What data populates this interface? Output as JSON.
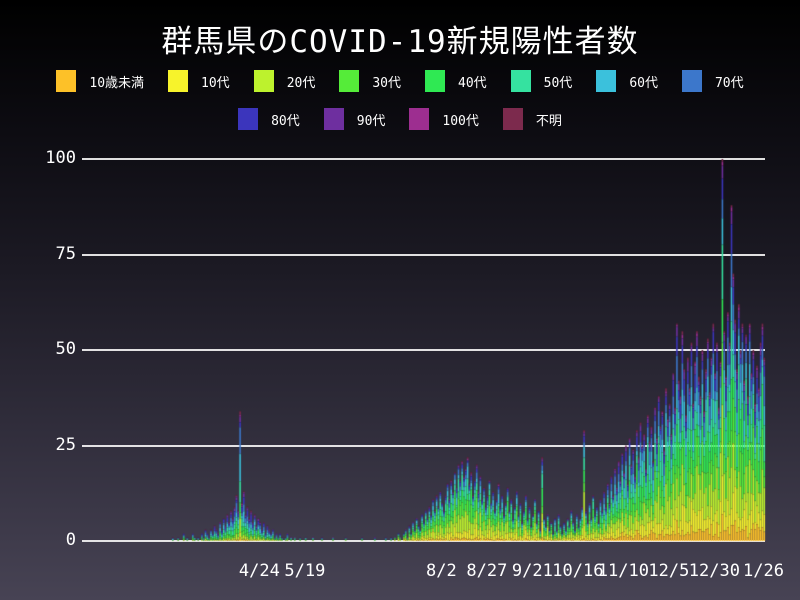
{
  "title": "群馬県のCOVID-19新規陽性者数",
  "colors": {
    "background_top": "#000000",
    "background_bottom": "#474354",
    "gridline": "#f2f2f2",
    "text": "#ffffff"
  },
  "legend": [
    {
      "label": "10歳未満",
      "color": "#fdc128"
    },
    {
      "label": "10代",
      "color": "#f7f32b"
    },
    {
      "label": "20代",
      "color": "#bdf22d"
    },
    {
      "label": "30代",
      "color": "#55ec39"
    },
    {
      "label": "40代",
      "color": "#2fe953"
    },
    {
      "label": "50代",
      "color": "#35e2a0"
    },
    {
      "label": "60代",
      "color": "#3bc1dc"
    },
    {
      "label": "70代",
      "color": "#3c77cb"
    },
    {
      "label": "80代",
      "color": "#3b35bc"
    },
    {
      "label": "90代",
      "color": "#6e2f9f"
    },
    {
      "label": "100代",
      "color": "#9d2e90"
    },
    {
      "label": "不明",
      "color": "#7c2a4d"
    }
  ],
  "chart_data": {
    "type": "bar",
    "stacked": true,
    "title": "群馬県のCOVID-19新規陽性者数",
    "xlabel": "",
    "ylabel": "",
    "ylim": [
      0,
      100
    ],
    "grid": "horizontal-white",
    "legend_position": "top",
    "x_start_date": "2020-03-07",
    "x_end_date": "2021-01-26",
    "x_tick_labels": [
      {
        "label": "4/24",
        "day": 48
      },
      {
        "label": "5/19",
        "day": 73
      },
      {
        "label": "8/2",
        "day": 148
      },
      {
        "label": "8/27",
        "day": 173
      },
      {
        "label": "9/21",
        "day": 198
      },
      {
        "label": "10/16",
        "day": 223
      },
      {
        "label": "11/10",
        "day": 248
      },
      {
        "label": "12/5",
        "day": 273
      },
      {
        "label": "12/30",
        "day": 298
      },
      {
        "label": "1/26",
        "day": 325
      }
    ],
    "y_ticks": [
      0,
      25,
      50,
      75,
      100
    ],
    "age_groups": [
      "10歳未満",
      "10代",
      "20代",
      "30代",
      "40代",
      "50代",
      "60代",
      "70代",
      "80代",
      "90代",
      "100代",
      "不明"
    ],
    "series_colors": [
      "#fdc128",
      "#f7f32b",
      "#bdf22d",
      "#55ec39",
      "#2fe953",
      "#35e2a0",
      "#3bc1dc",
      "#3c77cb",
      "#3b35bc",
      "#6e2f9f",
      "#9d2e90",
      "#7c2a4d"
    ],
    "era_distributions": [
      {
        "until_day": 120,
        "shares": [
          0.02,
          0.03,
          0.09,
          0.1,
          0.12,
          0.13,
          0.15,
          0.15,
          0.11,
          0.06,
          0.02,
          0.02
        ]
      },
      {
        "until_day": 235,
        "shares": [
          0.04,
          0.12,
          0.19,
          0.16,
          0.14,
          0.12,
          0.09,
          0.06,
          0.04,
          0.02,
          0.01,
          0.01
        ]
      },
      {
        "until_day": 325,
        "shares": [
          0.06,
          0.1,
          0.15,
          0.14,
          0.13,
          0.12,
          0.1,
          0.09,
          0.06,
          0.03,
          0.01,
          0.01
        ]
      }
    ],
    "daily_totals": [
      1,
      0,
      0,
      1,
      0,
      0,
      2,
      0,
      1,
      0,
      0,
      2,
      1,
      0,
      1,
      0,
      2,
      1,
      3,
      2,
      1,
      3,
      2,
      4,
      3,
      2,
      5,
      3,
      6,
      4,
      7,
      5,
      8,
      6,
      9,
      12,
      8,
      34,
      10,
      13,
      7,
      9,
      6,
      8,
      5,
      7,
      4,
      6,
      5,
      3,
      5,
      2,
      4,
      3,
      2,
      3,
      1,
      2,
      1,
      2,
      1,
      0,
      1,
      2,
      0,
      1,
      0,
      1,
      0,
      0,
      1,
      0,
      0,
      1,
      0,
      0,
      0,
      1,
      0,
      0,
      0,
      0,
      1,
      0,
      0,
      0,
      0,
      0,
      1,
      0,
      0,
      0,
      0,
      0,
      0,
      1,
      0,
      0,
      0,
      0,
      0,
      0,
      0,
      0,
      1,
      0,
      0,
      0,
      0,
      0,
      0,
      1,
      0,
      0,
      0,
      0,
      0,
      1,
      0,
      0,
      1,
      0,
      1,
      0,
      2,
      1,
      0,
      2,
      3,
      1,
      4,
      2,
      5,
      3,
      6,
      4,
      3,
      7,
      5,
      8,
      6,
      9,
      7,
      11,
      8,
      12,
      9,
      13,
      10,
      8,
      12,
      15,
      11,
      16,
      13,
      18,
      14,
      20,
      16,
      21,
      17,
      19,
      22,
      15,
      18,
      12,
      16,
      20,
      13,
      17,
      11,
      14,
      9,
      12,
      16,
      10,
      13,
      8,
      11,
      15,
      9,
      12,
      7,
      10,
      14,
      8,
      11,
      6,
      9,
      13,
      7,
      10,
      5,
      8,
      12,
      6,
      9,
      4,
      7,
      11,
      5,
      8,
      3,
      22,
      6,
      4,
      7,
      3,
      5,
      2,
      6,
      3,
      7,
      4,
      2,
      5,
      3,
      6,
      4,
      8,
      5,
      3,
      7,
      4,
      6,
      9,
      29,
      8,
      5,
      10,
      6,
      12,
      7,
      9,
      5,
      11,
      8,
      13,
      9,
      15,
      10,
      17,
      12,
      19,
      14,
      21,
      16,
      23,
      18,
      25,
      15,
      27,
      20,
      24,
      17,
      29,
      22,
      31,
      25,
      28,
      19,
      33,
      26,
      30,
      21,
      35,
      27,
      38,
      30,
      34,
      24,
      40,
      32,
      36,
      28,
      44,
      35,
      57,
      42,
      38,
      55,
      45,
      33,
      48,
      40,
      52,
      36,
      47,
      55,
      43,
      38,
      50,
      34,
      45,
      53,
      39,
      48,
      57,
      44,
      52,
      35,
      47,
      100,
      55,
      43,
      60,
      52,
      88,
      70,
      58,
      45,
      62,
      50,
      57,
      42,
      54,
      38,
      57,
      44,
      50,
      36,
      46,
      40,
      52,
      57,
      48
    ]
  }
}
